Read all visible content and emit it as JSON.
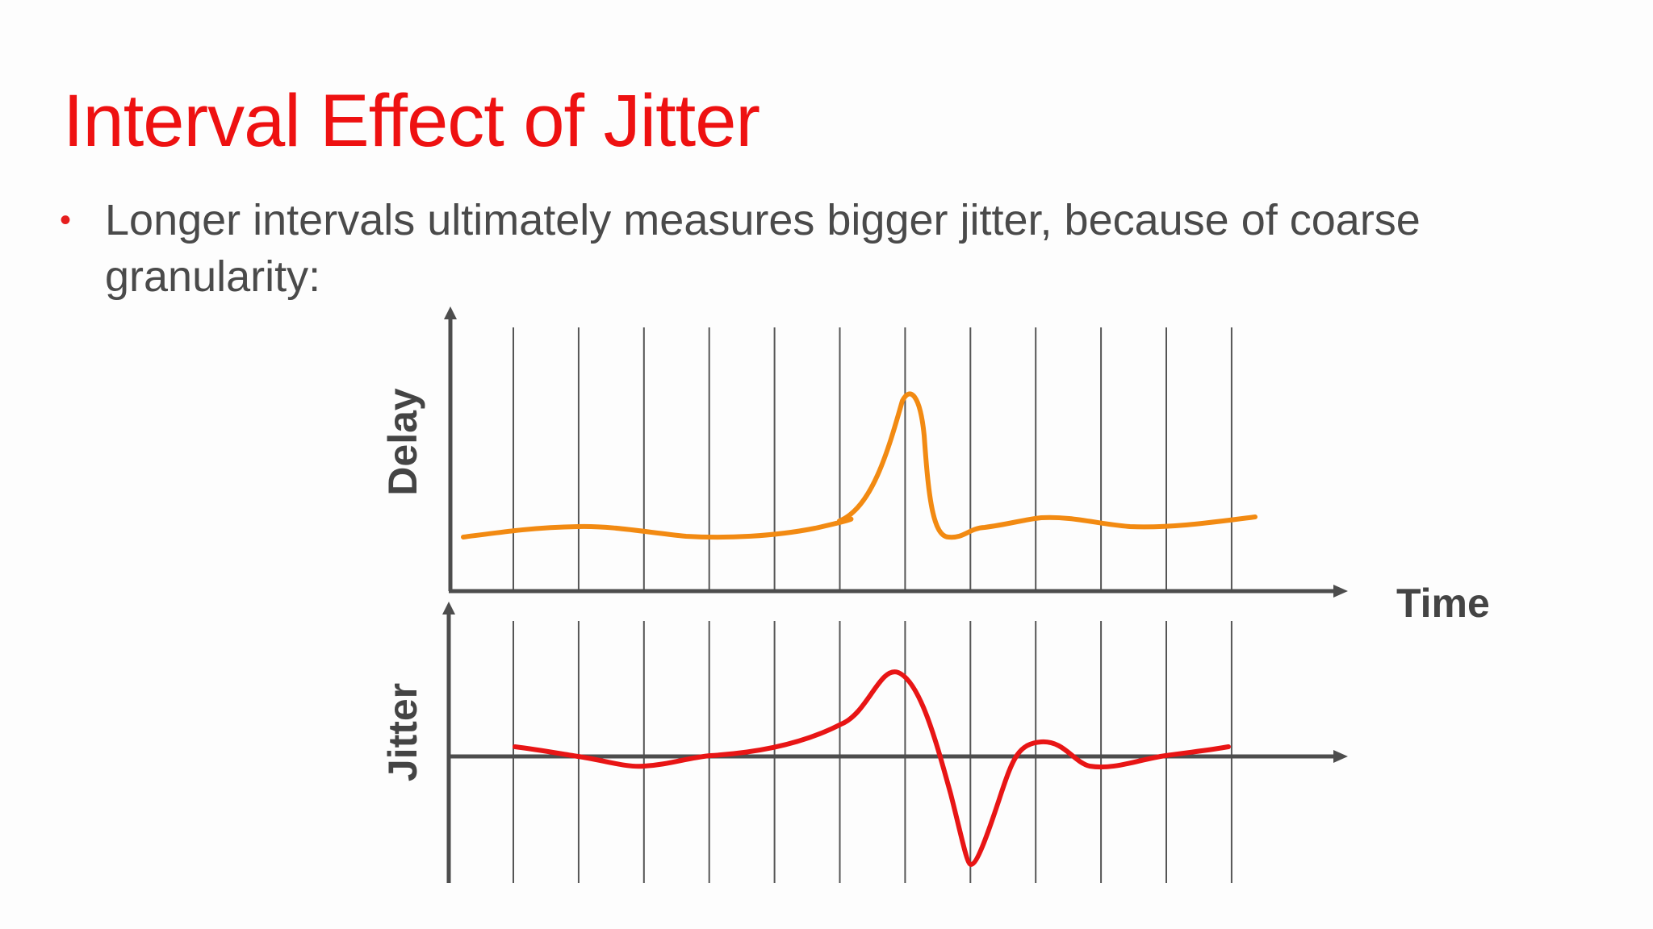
{
  "slide": {
    "title": "Interval Effect of Jitter",
    "bullets": [
      {
        "marker": "•",
        "text": "Longer intervals ultimately measures bigger jitter, because of coarse granularity:"
      }
    ]
  },
  "diagram": {
    "labels": {
      "delay_axis": "Delay",
      "jitter_axis": "Jitter",
      "time_axis": "Time"
    },
    "interval_count": 12,
    "colors": {
      "title": "#ee1111",
      "bullet_marker": "#e61e1e",
      "axis": "#4d4d4d",
      "interval_lines": "#555555",
      "delay_curve": "#f28a12",
      "jitter_curve": "#e81515",
      "labels": "#444444"
    }
  }
}
